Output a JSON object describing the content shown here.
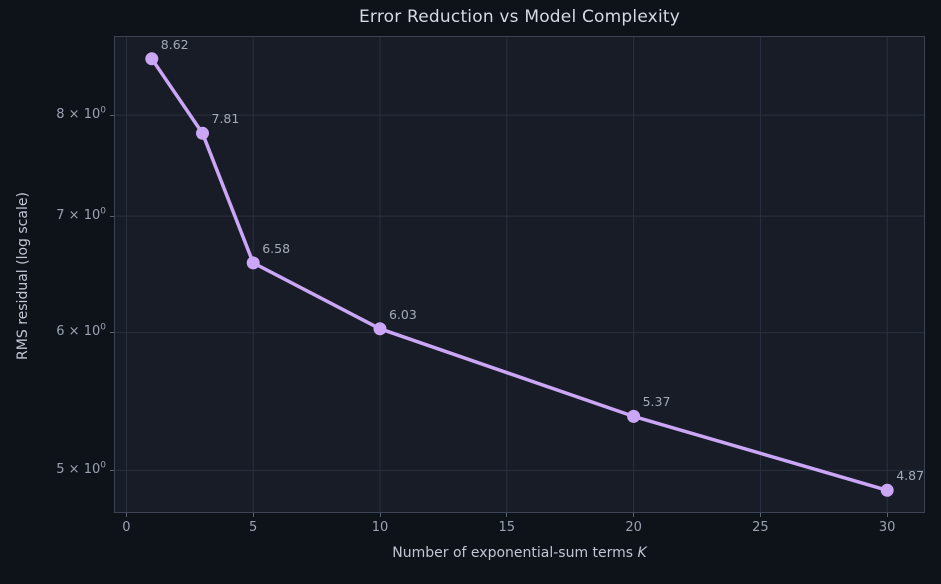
{
  "chart_data": {
    "type": "line",
    "title": "Error Reduction vs Model Complexity",
    "xlabel": "Number of exponential-sum terms ",
    "xlabel_italic": "K",
    "ylabel": "RMS residual (log scale)",
    "x": [
      1,
      3,
      5,
      10,
      20,
      30
    ],
    "y": [
      8.62,
      7.81,
      6.58,
      6.03,
      5.37,
      4.87
    ],
    "point_labels": [
      "8.62",
      "7.81",
      "6.58",
      "6.03",
      "5.37",
      "4.87"
    ],
    "yscale": "log",
    "xlim": [
      -0.45,
      31.45
    ],
    "ylim": [
      4.732,
      8.872
    ],
    "x_ticks": [
      0,
      5,
      10,
      15,
      20,
      25,
      30
    ],
    "y_ticks": [
      {
        "value": 5,
        "mantissa": "5",
        "times": " × 10",
        "exponent": "0"
      },
      {
        "value": 6,
        "mantissa": "6",
        "times": " × 10",
        "exponent": "0"
      },
      {
        "value": 7,
        "mantissa": "7",
        "times": " × 10",
        "exponent": "0"
      },
      {
        "value": 8,
        "mantissa": "8",
        "times": " × 10",
        "exponent": "0"
      }
    ],
    "grid": true,
    "legend": null,
    "colors": {
      "line": "#cba6f7",
      "marker": "#cba6f7",
      "figure_bg": "#0e1219",
      "axes_bg": "#171c26",
      "grid": "#2a3040",
      "spine": "#3c4354",
      "tick_text": "#9aa2b1",
      "title_text": "#d5dae3",
      "label_text": "#c0c7d3",
      "annotation_text": "#a3abb9"
    }
  }
}
